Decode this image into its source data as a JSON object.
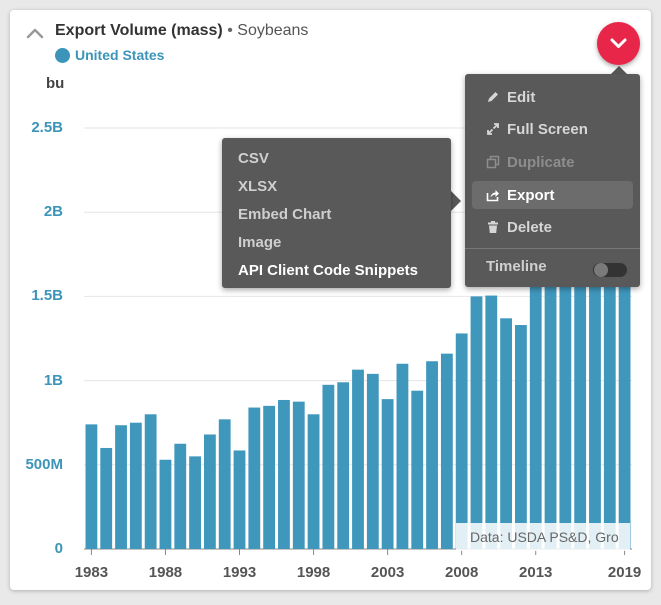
{
  "header": {
    "title": "Export Volume (mass)",
    "separator": "•",
    "subtitle": "Soybeans",
    "legend_label": "United States",
    "legend_color": "#3c95b8"
  },
  "source_note": "Data: USDA PS&D, Gro",
  "colors": {
    "bar": "#3f97bc",
    "accent": "#e8264a",
    "menu_bg": "#595959"
  },
  "menu": {
    "items": [
      {
        "label": "Edit",
        "icon": "pencil-icon",
        "state": "normal"
      },
      {
        "label": "Full Screen",
        "icon": "expand-icon",
        "state": "normal"
      },
      {
        "label": "Duplicate",
        "icon": "copy-icon",
        "state": "disabled"
      },
      {
        "label": "Export",
        "icon": "share-icon",
        "state": "active"
      },
      {
        "label": "Delete",
        "icon": "trash-icon",
        "state": "normal"
      }
    ],
    "timeline_label": "Timeline",
    "timeline_on": false
  },
  "export_submenu": {
    "items": [
      "CSV",
      "XLSX",
      "Embed Chart",
      "Image",
      "API Client Code Snippets"
    ]
  },
  "chart_data": {
    "type": "bar",
    "ylabel": "bu",
    "ylim": [
      0,
      2500000000
    ],
    "ytick_labels": [
      "0",
      "500M",
      "1B",
      "1.5B",
      "2B",
      "2.5B"
    ],
    "ytick_values": [
      0,
      500000000,
      1000000000,
      1500000000,
      2000000000,
      2500000000
    ],
    "xtick_labels": [
      "1983",
      "1988",
      "1993",
      "1998",
      "2003",
      "2008",
      "2013",
      "2019"
    ],
    "grid": true,
    "series": [
      {
        "name": "United States",
        "x": [
          1983,
          1984,
          1985,
          1986,
          1987,
          1988,
          1989,
          1990,
          1991,
          1992,
          1993,
          1994,
          1995,
          1996,
          1997,
          1998,
          1999,
          2000,
          2001,
          2002,
          2003,
          2004,
          2005,
          2006,
          2007,
          2008,
          2009,
          2010,
          2011,
          2012,
          2013,
          2014,
          2015,
          2016,
          2017,
          2018,
          2019
        ],
        "values": [
          740000000,
          600000000,
          735000000,
          750000000,
          800000000,
          530000000,
          625000000,
          550000000,
          680000000,
          770000000,
          585000000,
          840000000,
          850000000,
          885000000,
          875000000,
          800000000,
          975000000,
          990000000,
          1065000000,
          1040000000,
          890000000,
          1100000000,
          940000000,
          1115000000,
          1160000000,
          1280000000,
          1500000000,
          1505000000,
          1370000000,
          1330000000,
          1650000000,
          1850000000,
          1950000000,
          2150000000,
          2100000000,
          1800000000,
          1900000000
        ]
      }
    ]
  }
}
